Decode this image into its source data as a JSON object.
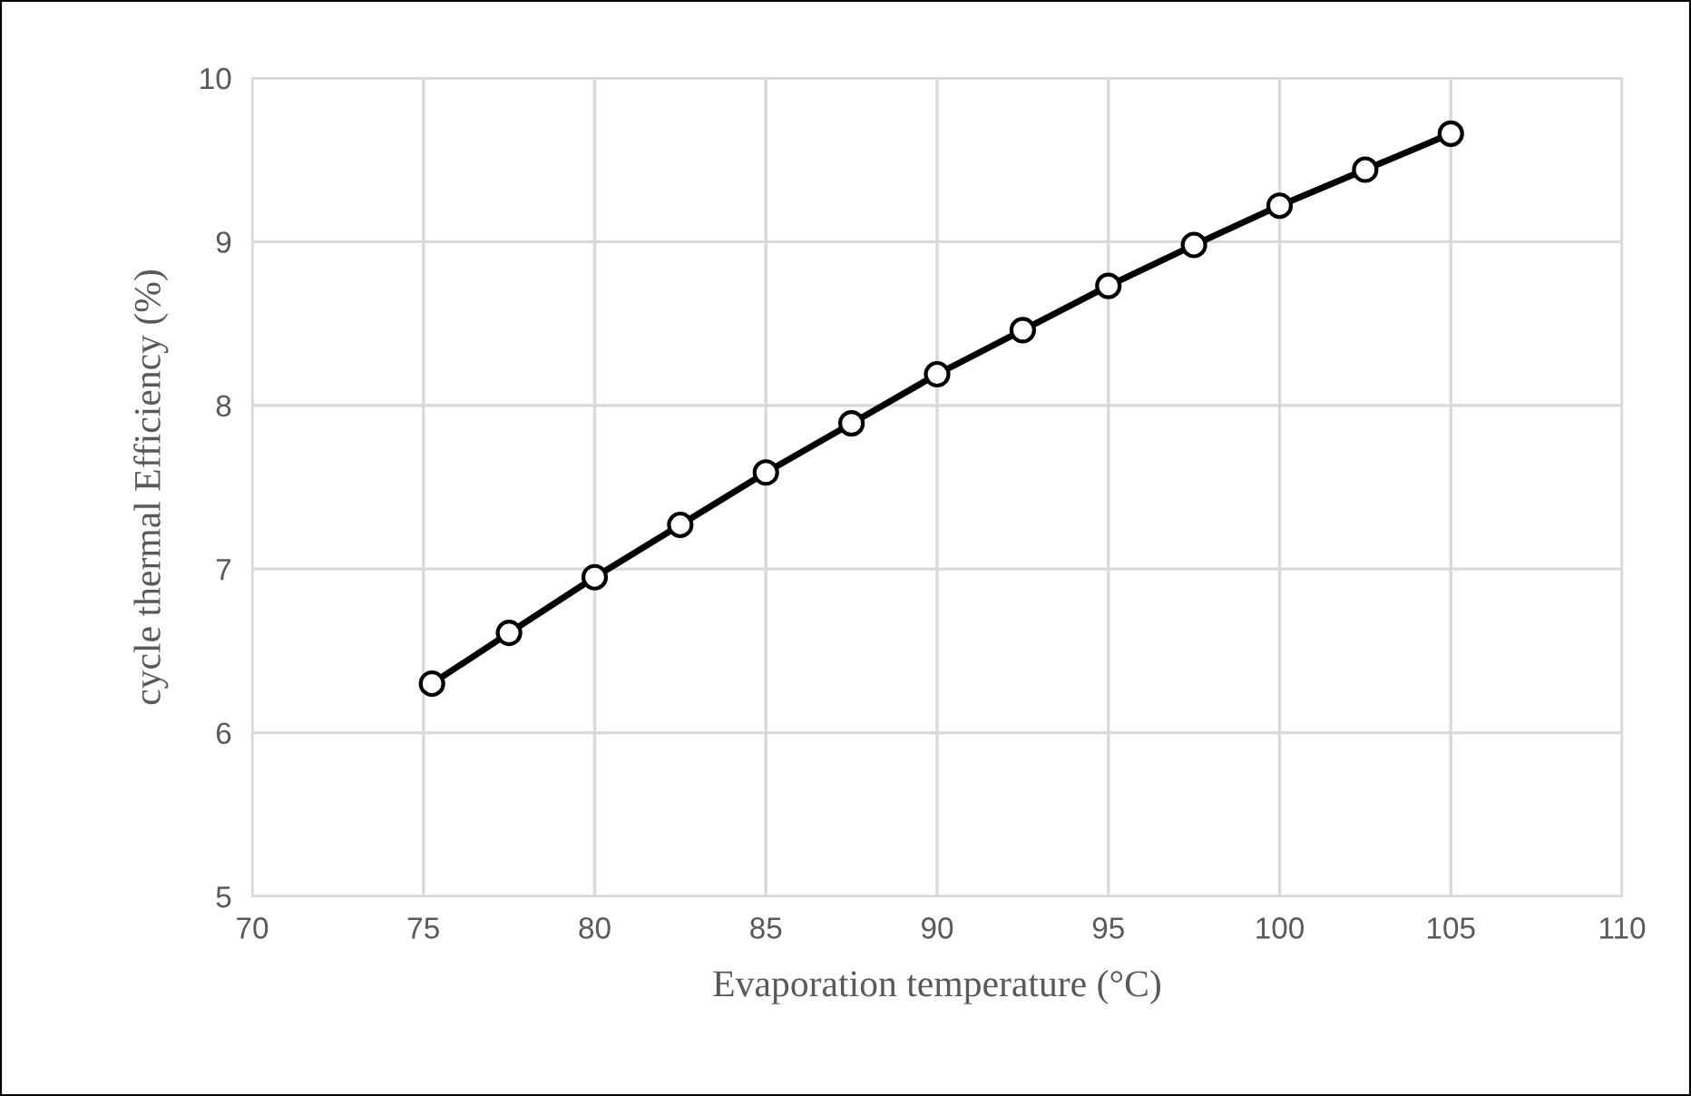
{
  "chart_data": {
    "type": "line",
    "xlabel": "Evaporation temperature (°C)",
    "ylabel": "cycle thermal Efficiency (%)",
    "x": [
      75.25,
      77.5,
      80,
      82.5,
      85,
      87.5,
      90,
      92.5,
      95,
      97.5,
      100,
      102.5,
      105
    ],
    "series": [
      {
        "color": "#000000",
        "values": [
          6.3,
          6.61,
          6.95,
          7.27,
          7.59,
          7.89,
          8.19,
          8.46,
          8.73,
          8.98,
          9.22,
          9.44,
          9.66
        ]
      }
    ],
    "xlim": [
      70,
      110
    ],
    "xticks": [
      70,
      75,
      80,
      85,
      90,
      95,
      100,
      105,
      110
    ],
    "ylim": [
      5,
      10
    ],
    "yticks": [
      5,
      6,
      7,
      8,
      9,
      10
    ],
    "grid": true,
    "marker": "circle",
    "line_style": "solid",
    "legend": false
  }
}
